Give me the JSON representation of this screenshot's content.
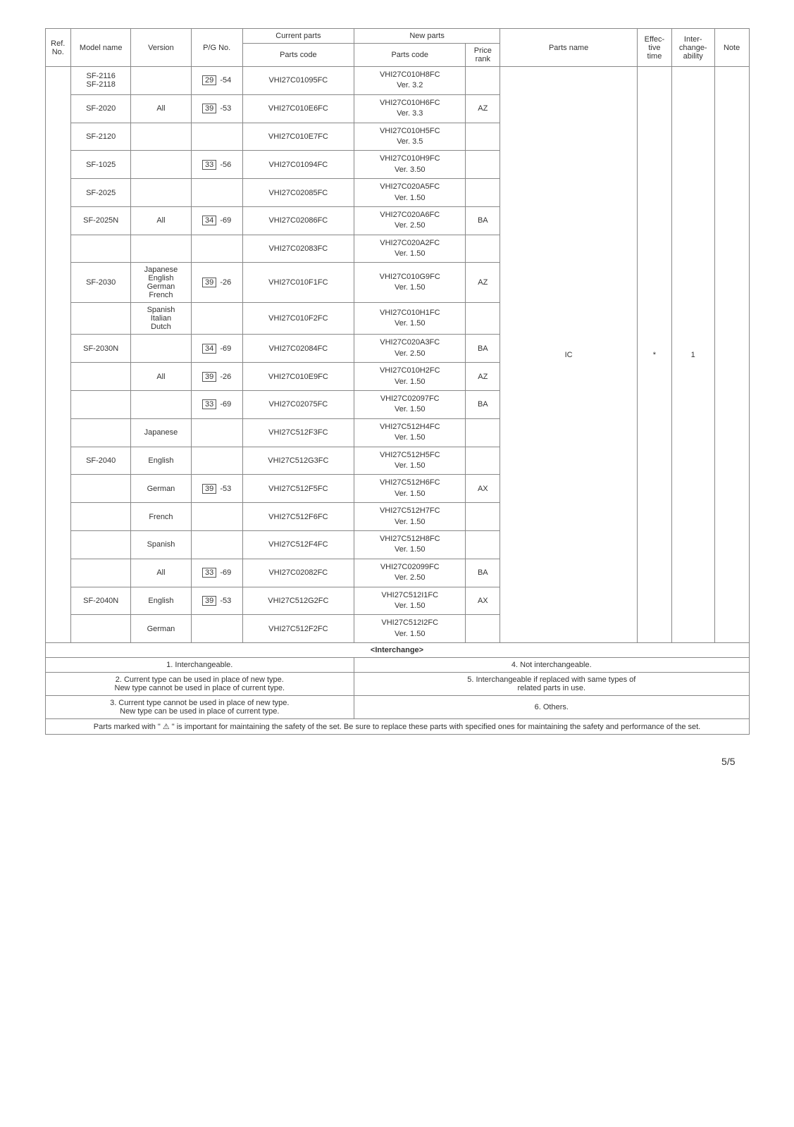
{
  "headers": {
    "ref_no": "Ref. No.",
    "model": "Model name",
    "version": "Version",
    "pgno": "P/G No.",
    "current_group": "Current parts",
    "new_group": "New parts",
    "parts_code": "Parts code",
    "price_rank": "Price rank",
    "parts_name": "Parts name",
    "effective": "Effec-\ntive\ntime",
    "interchange": "Inter-\nchange-\nability",
    "note": "Note"
  },
  "rows": [
    {
      "model": "SF-2116\nSF-2118",
      "version": "",
      "pg_box": "29",
      "pg_suf": "-54",
      "current": "VHI27C01095FC",
      "new": "VHI27C010H8FC",
      "ver": "Ver. 3.2",
      "rank": ""
    },
    {
      "model": "SF-2020",
      "version": "All",
      "pg_box": "39",
      "pg_suf": "-53",
      "current": "VHI27C010E6FC",
      "new": "VHI27C010H6FC",
      "ver": "Ver. 3.3",
      "rank": "AZ"
    },
    {
      "model": "SF-2120",
      "version": "",
      "pg_box": "",
      "pg_suf": "",
      "current": "VHI27C010E7FC",
      "new": "VHI27C010H5FC",
      "ver": "Ver. 3.5",
      "rank": ""
    },
    {
      "model": "SF-1025",
      "version": "",
      "pg_box": "33",
      "pg_suf": "-56",
      "current": "VHI27C01094FC",
      "new": "VHI27C010H9FC",
      "ver": "Ver. 3.50",
      "rank": ""
    },
    {
      "model": "SF-2025",
      "version": "",
      "pg_box": "",
      "pg_suf": "",
      "current": "VHI27C02085FC",
      "new": "VHI27C020A5FC",
      "ver": "Ver. 1.50",
      "rank": ""
    },
    {
      "model": "SF-2025N",
      "version": "All",
      "pg_box": "34",
      "pg_suf": "-69",
      "current": "VHI27C02086FC",
      "new": "VHI27C020A6FC",
      "ver": "Ver. 2.50",
      "rank": "BA"
    },
    {
      "model": "",
      "version": "",
      "pg_box": "",
      "pg_suf": "",
      "current": "VHI27C02083FC",
      "new": "VHI27C020A2FC",
      "ver": "Ver. 1.50",
      "rank": ""
    },
    {
      "model": "SF-2030",
      "version": "Japanese\nEnglish\nGerman\nFrench",
      "pg_box": "39",
      "pg_suf": "-26",
      "current": "VHI27C010F1FC",
      "new": "VHI27C010G9FC",
      "ver": "Ver. 1.50",
      "rank": "AZ"
    },
    {
      "model": "",
      "version": "Spanish\nItalian\nDutch",
      "pg_box": "",
      "pg_suf": "",
      "current": "VHI27C010F2FC",
      "new": "VHI27C010H1FC",
      "ver": "Ver. 1.50",
      "rank": ""
    },
    {
      "model": "SF-2030N",
      "version": "",
      "pg_box": "34",
      "pg_suf": "-69",
      "current": "VHI27C02084FC",
      "new": "VHI27C020A3FC",
      "ver": "Ver. 2.50",
      "rank": "BA"
    },
    {
      "model": "",
      "version": "All",
      "pg_box": "39",
      "pg_suf": "-26",
      "current": "VHI27C010E9FC",
      "new": "VHI27C010H2FC",
      "ver": "Ver. 1.50",
      "rank": "AZ"
    },
    {
      "model": "",
      "version": "",
      "pg_box": "33",
      "pg_suf": "-69",
      "current": "VHI27C02075FC",
      "new": "VHI27C02097FC",
      "ver": "Ver. 1.50",
      "rank": "BA"
    },
    {
      "model": "",
      "version": "Japanese",
      "pg_box": "",
      "pg_suf": "",
      "current": "VHI27C512F3FC",
      "new": "VHI27C512H4FC",
      "ver": "Ver. 1.50",
      "rank": ""
    },
    {
      "model": "SF-2040",
      "version": "English",
      "pg_box": "",
      "pg_suf": "",
      "current": "VHI27C512G3FC",
      "new": "VHI27C512H5FC",
      "ver": "Ver. 1.50",
      "rank": ""
    },
    {
      "model": "",
      "version": "German",
      "pg_box": "39",
      "pg_suf": "-53",
      "current": "VHI27C512F5FC",
      "new": "VHI27C512H6FC",
      "ver": "Ver. 1.50",
      "rank": "AX"
    },
    {
      "model": "",
      "version": "French",
      "pg_box": "",
      "pg_suf": "",
      "current": "VHI27C512F6FC",
      "new": "VHI27C512H7FC",
      "ver": "Ver. 1.50",
      "rank": ""
    },
    {
      "model": "",
      "version": "Spanish",
      "pg_box": "",
      "pg_suf": "",
      "current": "VHI27C512F4FC",
      "new": "VHI27C512H8FC",
      "ver": "Ver. 1.50",
      "rank": ""
    },
    {
      "model": "",
      "version": "All",
      "pg_box": "33",
      "pg_suf": "-69",
      "current": "VHI27C02082FC",
      "new": "VHI27C02099FC",
      "ver": "Ver. 2.50",
      "rank": "BA"
    },
    {
      "model": "SF-2040N",
      "version": "English",
      "pg_box": "39",
      "pg_suf": "-53",
      "current": "VHI27C512G2FC",
      "new": "VHI27C512I1FC",
      "ver": "Ver. 1.50",
      "rank": "AX"
    },
    {
      "model": "",
      "version": "German",
      "pg_box": "",
      "pg_suf": "",
      "current": "VHI27C512F2FC",
      "new": "VHI27C512I2FC",
      "ver": "Ver. 1.50",
      "rank": ""
    }
  ],
  "big": {
    "parts_name": "IC",
    "effective": "*",
    "interchange": "1",
    "note": ""
  },
  "interchange": {
    "header": "<Interchange>",
    "items": [
      "1. Interchangeable.",
      "2. Current type can be used in place of new type.\n    New type cannot be used in place of current type.",
      "3. Current type cannot be used in place of new type.\n    New type can be used in place of current type.",
      "4. Not interchangeable.",
      "5. Interchangeable if replaced with same types of\n    related parts in use.",
      "6. Others."
    ]
  },
  "safety_note": "Parts marked with \" ⚠ \" is important for maintaining the safety of the set. Be sure to replace these parts with specified ones for maintaining the safety and performance of the set.",
  "page_number": "5/5"
}
